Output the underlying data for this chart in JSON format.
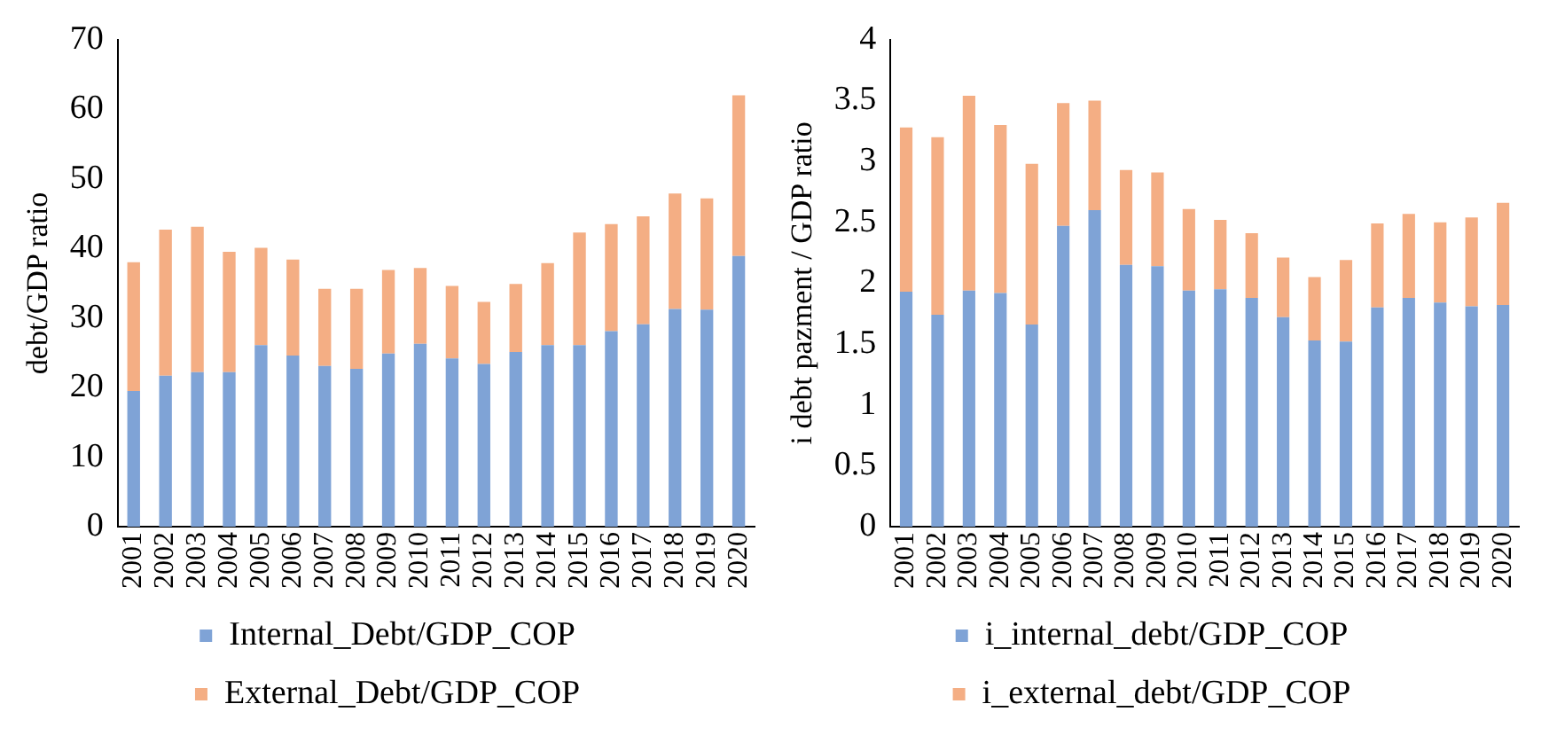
{
  "chart_data": [
    {
      "type": "bar",
      "stacked": true,
      "ylabel": "debt/GDP ratio",
      "categories": [
        "2001",
        "2002",
        "2003",
        "2004",
        "2005",
        "2006",
        "2007",
        "2008",
        "2009",
        "2010",
        "2011",
        "2012",
        "2013",
        "2014",
        "2015",
        "2016",
        "2017",
        "2018",
        "2019",
        "2020"
      ],
      "ylim": [
        0,
        70
      ],
      "yticks": [
        0,
        10,
        20,
        30,
        40,
        50,
        60,
        70
      ],
      "grid": false,
      "legend": "bottom",
      "series": [
        {
          "name": "Internal_Debt/GDP_COP",
          "color": "#7fa3d6",
          "values": [
            19.5,
            21.7,
            22.2,
            22.2,
            26.1,
            24.6,
            23.1,
            22.7,
            24.9,
            26.3,
            24.2,
            23.4,
            25.1,
            26.1,
            26.1,
            28.1,
            29.1,
            31.3,
            31.2,
            38.9
          ]
        },
        {
          "name": "External_Debt/GDP_COP",
          "color": "#f4ae84",
          "values": [
            18.5,
            21.0,
            20.9,
            17.3,
            14.0,
            13.8,
            11.1,
            11.5,
            12.0,
            10.9,
            10.4,
            8.9,
            9.8,
            11.8,
            16.2,
            15.4,
            15.5,
            16.6,
            16.0,
            23.1
          ]
        }
      ]
    },
    {
      "type": "bar",
      "stacked": true,
      "ylabel": "i debt pazment / GDP ratio",
      "categories": [
        "2001",
        "2002",
        "2003",
        "2004",
        "2005",
        "2006",
        "2007",
        "2008",
        "2009",
        "2010",
        "2011",
        "2012",
        "2013",
        "2014",
        "2015",
        "2016",
        "2017",
        "2018",
        "2019",
        "2020"
      ],
      "ylim": [
        0,
        4
      ],
      "yticks": [
        0,
        0.5,
        1,
        1.5,
        2,
        2.5,
        3,
        3.5,
        4
      ],
      "grid": false,
      "legend": "bottom",
      "series": [
        {
          "name": "i_internal_debt/GDP_COP",
          "color": "#7fa3d6",
          "values": [
            1.93,
            1.74,
            1.94,
            1.92,
            1.66,
            2.47,
            2.6,
            2.15,
            2.14,
            1.94,
            1.95,
            1.88,
            1.72,
            1.53,
            1.52,
            1.8,
            1.88,
            1.84,
            1.81,
            1.82
          ]
        },
        {
          "name": "i_external_debt/GDP_COP",
          "color": "#f4ae84",
          "values": [
            1.35,
            1.46,
            1.6,
            1.38,
            1.32,
            1.01,
            0.9,
            0.78,
            0.77,
            0.67,
            0.57,
            0.53,
            0.49,
            0.52,
            0.67,
            0.69,
            0.69,
            0.66,
            0.73,
            0.84
          ]
        }
      ]
    }
  ]
}
